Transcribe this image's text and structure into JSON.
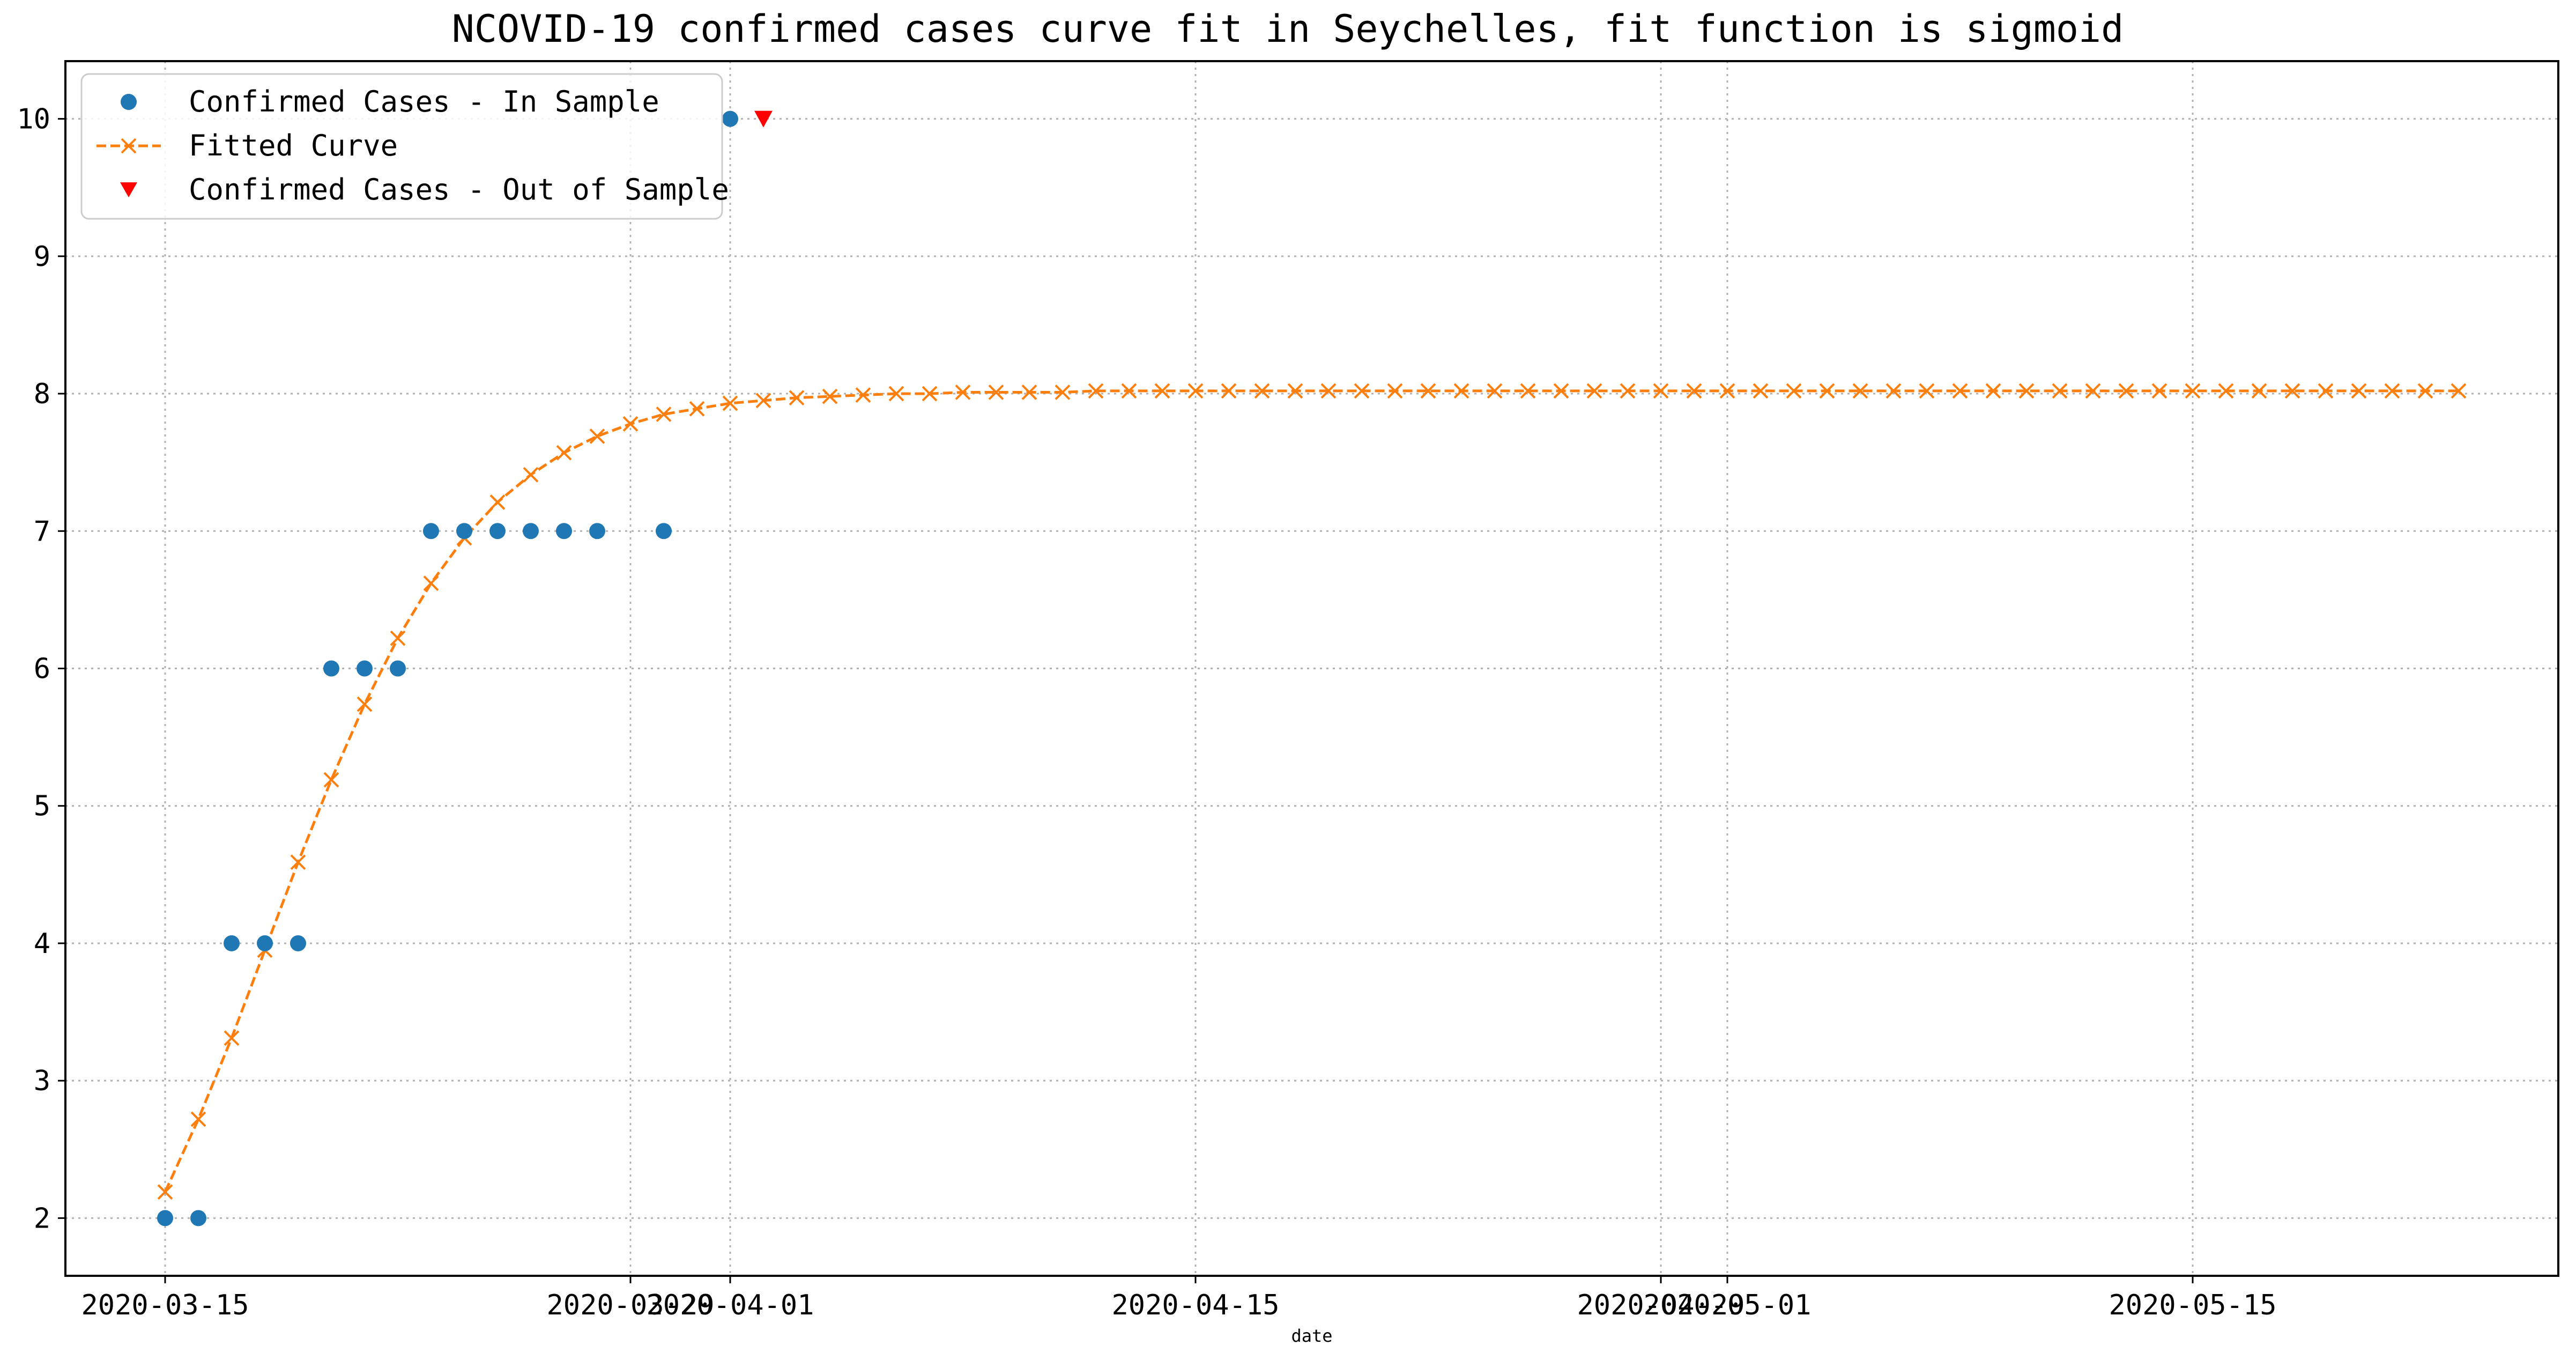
{
  "chart_data": {
    "type": "line",
    "title": "NCOVID-19 confirmed cases curve fit in Seychelles, fit function is sigmoid",
    "xlabel": "date",
    "ylabel": "",
    "grid": true,
    "legend_position": "upper-left",
    "xlim": [
      "2020-03-12",
      "2020-05-26"
    ],
    "ylim": [
      1.58,
      10.42
    ],
    "x_tick_labels": [
      "2020-03-15",
      "2020-03-29",
      "2020-04-01",
      "2020-04-15",
      "2020-04-29",
      "2020-05-01",
      "2020-05-15"
    ],
    "y_tick_labels": [
      "2",
      "3",
      "4",
      "5",
      "6",
      "7",
      "8",
      "9",
      "10"
    ],
    "series": [
      {
        "name": "Confirmed Cases - In Sample",
        "style": "scatter",
        "marker": "circle",
        "color": "#1f77b4",
        "x": [
          "2020-03-15",
          "2020-03-16",
          "2020-03-17",
          "2020-03-18",
          "2020-03-19",
          "2020-03-20",
          "2020-03-21",
          "2020-03-22",
          "2020-03-23",
          "2020-03-24",
          "2020-03-25",
          "2020-03-26",
          "2020-03-27",
          "2020-03-28",
          "2020-03-30",
          "2020-04-01"
        ],
        "y": [
          2,
          2,
          4,
          4,
          4,
          6,
          6,
          6,
          7,
          7,
          7,
          7,
          7,
          7,
          7,
          10
        ]
      },
      {
        "name": "Fitted Curve",
        "style": "dashed-line",
        "marker": "x",
        "color": "#ff7f0e",
        "x_start": "2020-03-15",
        "x_step_days": 1,
        "y": [
          2.19,
          2.72,
          3.31,
          3.95,
          4.59,
          5.19,
          5.74,
          6.22,
          6.62,
          6.95,
          7.21,
          7.41,
          7.57,
          7.69,
          7.78,
          7.85,
          7.89,
          7.93,
          7.95,
          7.97,
          7.98,
          7.99,
          8.0,
          8.0,
          8.01,
          8.01,
          8.01,
          8.01,
          8.02,
          8.02,
          8.02,
          8.02,
          8.02,
          8.02,
          8.02,
          8.02,
          8.02,
          8.02,
          8.02,
          8.02,
          8.02,
          8.02,
          8.02,
          8.02,
          8.02,
          8.02,
          8.02,
          8.02,
          8.02,
          8.02,
          8.02,
          8.02,
          8.02,
          8.02,
          8.02,
          8.02,
          8.02,
          8.02,
          8.02,
          8.02,
          8.02,
          8.02,
          8.02,
          8.02,
          8.02,
          8.02,
          8.02,
          8.02,
          8.02,
          8.02
        ]
      },
      {
        "name": "Confirmed Cases - Out of Sample",
        "style": "scatter",
        "marker": "triangle-down",
        "color": "#ff0000",
        "x": [
          "2020-04-02"
        ],
        "y": [
          10
        ]
      }
    ]
  }
}
